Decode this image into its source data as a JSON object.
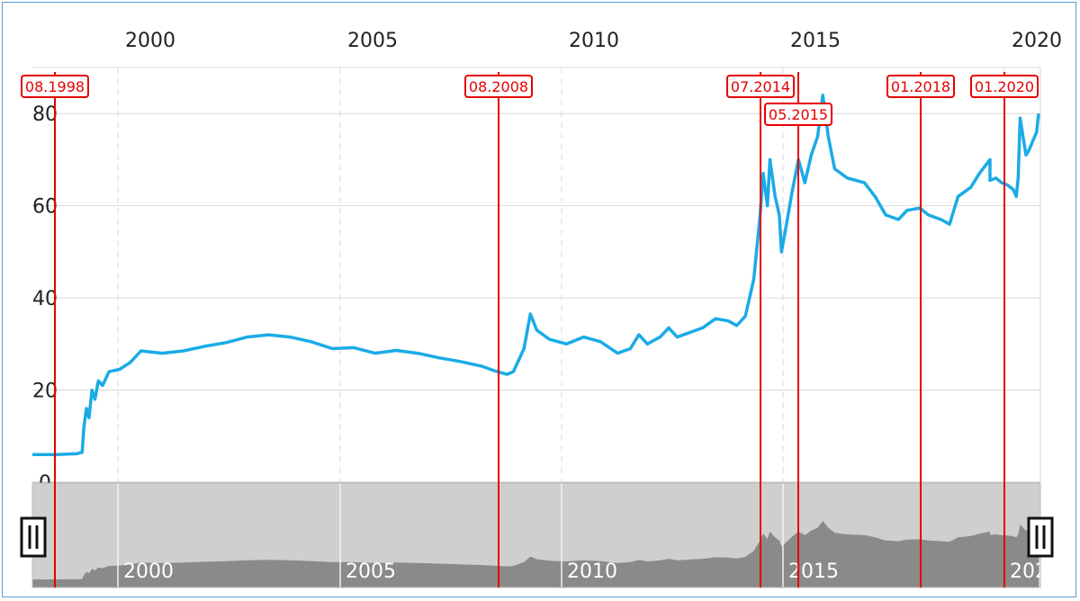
{
  "chart_data": {
    "type": "line",
    "title": "",
    "xlabel": "",
    "ylabel": "",
    "xlim": [
      1997.4,
      2020.0
    ],
    "ylim": [
      0,
      90
    ],
    "x_ticks": [
      {
        "value": 2000,
        "label": "2000"
      },
      {
        "value": 2005,
        "label": "2005"
      },
      {
        "value": 2010,
        "label": "2010"
      },
      {
        "value": 2015,
        "label": "2015"
      },
      {
        "value": 2020,
        "label": "2020"
      }
    ],
    "y_ticks": [
      {
        "value": 0,
        "label": "0"
      },
      {
        "value": 20,
        "label": "20"
      },
      {
        "value": 40,
        "label": "40"
      },
      {
        "value": 60,
        "label": "60"
      },
      {
        "value": 80,
        "label": "80"
      }
    ],
    "navigator_ticks": [
      {
        "value": 2000,
        "label": "2000"
      },
      {
        "value": 2005,
        "label": "2005"
      },
      {
        "value": 2010,
        "label": "2010"
      },
      {
        "value": 2015,
        "label": "2015"
      },
      {
        "value": 2020,
        "label": "202"
      }
    ],
    "grid": true,
    "legend": "none",
    "line_color": "#1aabe6",
    "marker_color": "#e60000",
    "navigator_fill": "#8a8a8a",
    "navigator_bg": "#cfcfcf",
    "series": [
      {
        "values": [
          [
            1997.45,
            6.0
          ],
          [
            1998.0,
            6.0
          ],
          [
            1998.5,
            6.2
          ],
          [
            1998.62,
            6.5
          ],
          [
            1998.66,
            12
          ],
          [
            1998.72,
            16
          ],
          [
            1998.78,
            14
          ],
          [
            1998.85,
            20
          ],
          [
            1998.92,
            18
          ],
          [
            1999.0,
            22
          ],
          [
            1999.1,
            21
          ],
          [
            1999.25,
            24
          ],
          [
            1999.5,
            24.5
          ],
          [
            1999.75,
            26
          ],
          [
            2000.0,
            28.5
          ],
          [
            2000.5,
            28
          ],
          [
            2001.0,
            28.5
          ],
          [
            2001.5,
            29.5
          ],
          [
            2002.0,
            30.3
          ],
          [
            2002.5,
            31.5
          ],
          [
            2003.0,
            32
          ],
          [
            2003.5,
            31.5
          ],
          [
            2004.0,
            30.5
          ],
          [
            2004.5,
            29
          ],
          [
            2005.0,
            29.2
          ],
          [
            2005.5,
            28
          ],
          [
            2006.0,
            28.6
          ],
          [
            2006.5,
            28
          ],
          [
            2007.0,
            27
          ],
          [
            2007.5,
            26.2
          ],
          [
            2008.0,
            25.2
          ],
          [
            2008.3,
            24.2
          ],
          [
            2008.6,
            23.4
          ],
          [
            2008.75,
            24
          ],
          [
            2009.0,
            29
          ],
          [
            2009.15,
            36.5
          ],
          [
            2009.3,
            33
          ],
          [
            2009.6,
            31
          ],
          [
            2010.0,
            30
          ],
          [
            2010.4,
            31.5
          ],
          [
            2010.8,
            30.5
          ],
          [
            2011.2,
            28
          ],
          [
            2011.5,
            29
          ],
          [
            2011.7,
            32
          ],
          [
            2011.9,
            30
          ],
          [
            2012.2,
            31.5
          ],
          [
            2012.4,
            33.5
          ],
          [
            2012.6,
            31.5
          ],
          [
            2012.9,
            32.5
          ],
          [
            2013.2,
            33.5
          ],
          [
            2013.5,
            35.5
          ],
          [
            2013.8,
            35
          ],
          [
            2014.0,
            34
          ],
          [
            2014.2,
            36
          ],
          [
            2014.4,
            44
          ],
          [
            2014.55,
            58
          ],
          [
            2014.62,
            67
          ],
          [
            2014.72,
            60
          ],
          [
            2014.78,
            70
          ],
          [
            2014.9,
            62
          ],
          [
            2015.0,
            58
          ],
          [
            2015.05,
            50
          ],
          [
            2015.15,
            55
          ],
          [
            2015.3,
            63
          ],
          [
            2015.45,
            70
          ],
          [
            2015.6,
            65
          ],
          [
            2015.75,
            71
          ],
          [
            2015.9,
            75
          ],
          [
            2016.02,
            84
          ],
          [
            2016.15,
            75
          ],
          [
            2016.3,
            68
          ],
          [
            2016.6,
            66
          ],
          [
            2017.0,
            65
          ],
          [
            2017.25,
            62
          ],
          [
            2017.5,
            58
          ],
          [
            2017.8,
            57
          ],
          [
            2018.0,
            59
          ],
          [
            2018.3,
            59.5
          ],
          [
            2018.5,
            58
          ],
          [
            2018.8,
            57
          ],
          [
            2019.0,
            56
          ],
          [
            2019.2,
            62
          ],
          [
            2019.5,
            64
          ],
          [
            2019.7,
            67
          ],
          [
            2019.95,
            70
          ]
        ]
      },
      {
        "values": [
          [
            2020.0,
            65.5
          ],
          [
            2020.3,
            66
          ],
          [
            2020.6,
            65
          ],
          [
            2020.9,
            64.5
          ],
          [
            2021.2,
            63.5
          ],
          [
            2021.35,
            62
          ],
          [
            2021.45,
            66
          ],
          [
            2021.55,
            79
          ],
          [
            2021.7,
            75
          ],
          [
            2021.85,
            71
          ],
          [
            2022.0,
            72
          ],
          [
            2022.2,
            74
          ],
          [
            2022.4,
            76
          ],
          [
            2022.5,
            80
          ]
        ]
      }
    ],
    "markers": [
      {
        "x": 1998.62,
        "label": "08.1998",
        "row": 1
      },
      {
        "x": 2008.62,
        "label": "08.2008",
        "row": 1
      },
      {
        "x": 2014.5,
        "label": "07.2014",
        "row": 1
      },
      {
        "x": 2015.37,
        "label": "05.2015",
        "row": 2
      },
      {
        "x": 2018.0,
        "label": "01.2018",
        "row": 1
      },
      {
        "x": 2020.0,
        "label": "01.2020",
        "row": 1
      }
    ]
  }
}
